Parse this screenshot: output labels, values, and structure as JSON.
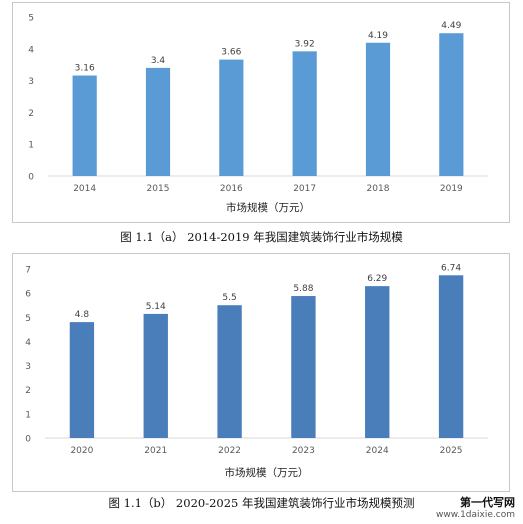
{
  "chart_data": [
    {
      "type": "bar",
      "categories": [
        "2014",
        "2015",
        "2016",
        "2017",
        "2018",
        "2019"
      ],
      "values": [
        3.16,
        3.4,
        3.66,
        3.92,
        4.19,
        4.49
      ],
      "data_labels": [
        "3.16",
        "3.4",
        "3.66",
        "3.92",
        "4.19",
        "4.49"
      ],
      "yticks": [
        "0",
        "1",
        "2",
        "3",
        "4",
        "5"
      ],
      "ylim": [
        0,
        5
      ],
      "xlabel": "市场规模（万元）",
      "ylabel": "",
      "bar_color": "#5b9bd5",
      "grid": false,
      "caption": "图 1.1（a） 2014-2019 年我国建筑装饰行业市场规模"
    },
    {
      "type": "bar",
      "categories": [
        "2020",
        "2021",
        "2022",
        "2023",
        "2024",
        "2025"
      ],
      "values": [
        4.8,
        5.14,
        5.5,
        5.88,
        6.29,
        6.74
      ],
      "data_labels": [
        "4.8",
        "5.14",
        "5.5",
        "5.88",
        "6.29",
        "6.74"
      ],
      "yticks": [
        "0",
        "1",
        "2",
        "3",
        "4",
        "5",
        "6",
        "7"
      ],
      "ylim": [
        0,
        7
      ],
      "xlabel": "市场规模（万元）",
      "ylabel": "",
      "bar_color": "#4a7ebb",
      "grid": false,
      "caption": "图 1.1（b） 2020-2025 年我国建筑装饰行业市场规模预测"
    }
  ],
  "watermark": {
    "line1": "第一代写网",
    "line2": "www.1daixie.com"
  }
}
